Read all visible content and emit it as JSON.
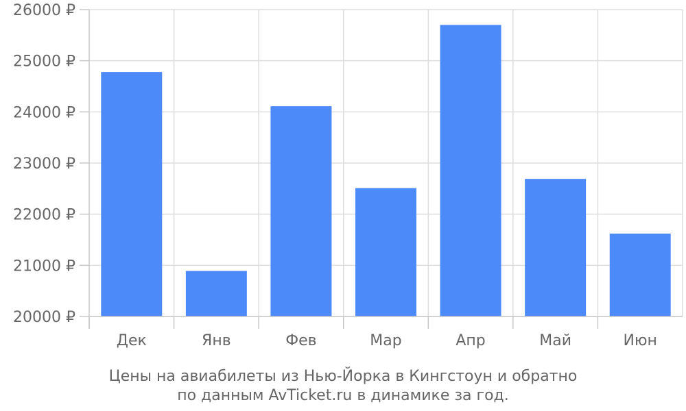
{
  "chart_data": {
    "type": "bar",
    "categories": [
      "Дек",
      "Янв",
      "Фев",
      "Мар",
      "Апр",
      "Май",
      "Июн"
    ],
    "series": [
      {
        "values": [
          24780,
          20890,
          24110,
          22510,
          25700,
          22690,
          21620
        ]
      }
    ],
    "y_ticks": [
      "20000 ₽",
      "21000 ₽",
      "22000 ₽",
      "23000 ₽",
      "24000 ₽",
      "25000 ₽",
      "26000 ₽"
    ],
    "ylim": [
      20000,
      26000
    ],
    "grid": true,
    "bar_color": "#4d8af9",
    "caption_lines": [
      "Цены на авиабилеты из Нью-Йорка в Кингстоун и обратно",
      "по данным AvTicket.ru в динамике за год."
    ]
  }
}
